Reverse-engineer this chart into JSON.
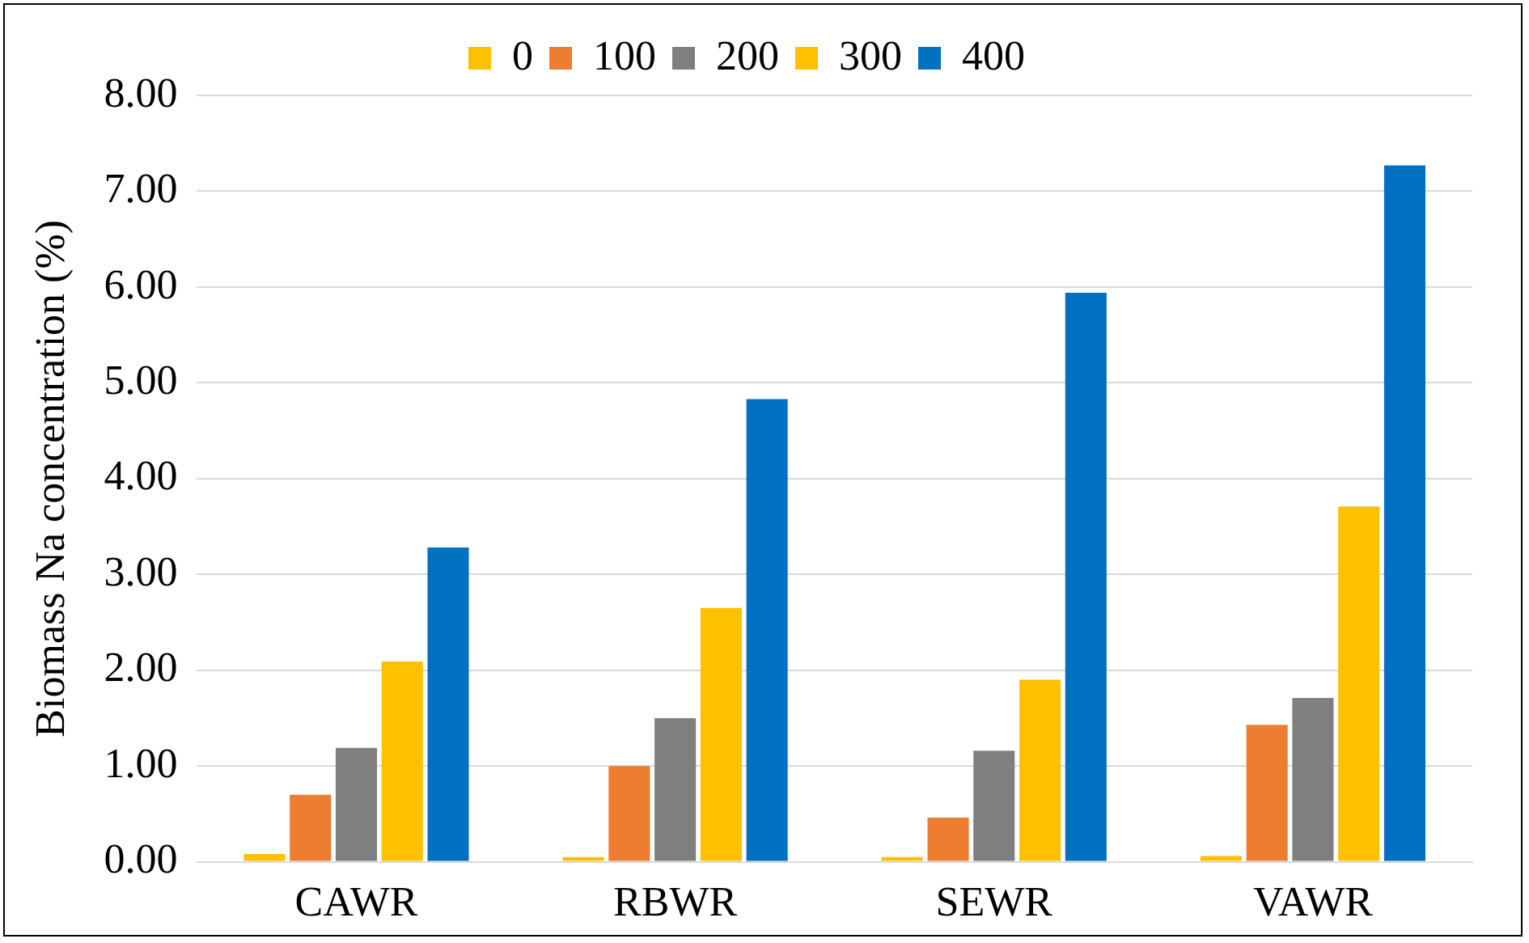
{
  "chart_data": {
    "type": "bar",
    "ylabel": "Biomass Na concentration (%)",
    "categories": [
      "CAWR",
      "RBWR",
      "SEWR",
      "VAWR"
    ],
    "series": [
      {
        "name": "0",
        "color": "#ffc000",
        "values": [
          0.08,
          0.05,
          0.05,
          0.06
        ]
      },
      {
        "name": "100",
        "color": "#ed7d31",
        "values": [
          0.7,
          1.0,
          0.46,
          1.43
        ]
      },
      {
        "name": "200",
        "color": "#7f7f7f",
        "values": [
          1.19,
          1.5,
          1.16,
          1.71
        ]
      },
      {
        "name": "300",
        "color": "#ffc000",
        "values": [
          2.09,
          2.65,
          1.9,
          3.71
        ]
      },
      {
        "name": "400",
        "color": "#0070c0",
        "values": [
          3.28,
          4.83,
          5.94,
          7.27
        ]
      }
    ],
    "ylim": [
      0,
      8
    ],
    "yticks": [
      {
        "value": 0,
        "label": "0.00"
      },
      {
        "value": 1,
        "label": "1.00"
      },
      {
        "value": 2,
        "label": "2.00"
      },
      {
        "value": 3,
        "label": "3.00"
      },
      {
        "value": 4,
        "label": "4.00"
      },
      {
        "value": 5,
        "label": "5.00"
      },
      {
        "value": 6,
        "label": "6.00"
      },
      {
        "value": 7,
        "label": "7.00"
      },
      {
        "value": 8,
        "label": "8.00"
      }
    ],
    "grid": "y",
    "legend": "top"
  }
}
